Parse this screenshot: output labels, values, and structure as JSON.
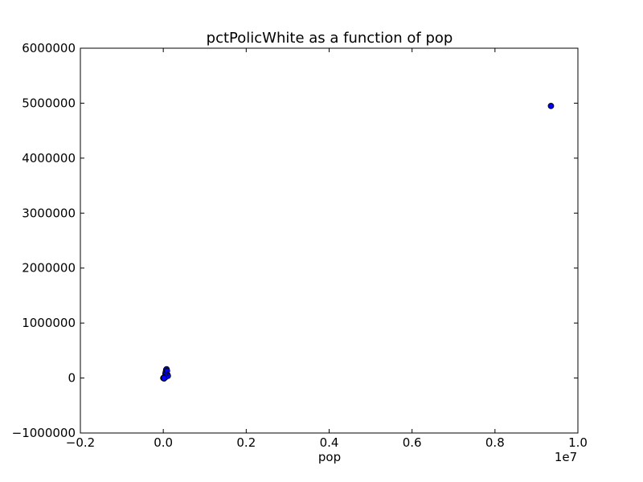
{
  "chart_data": {
    "type": "scatter",
    "title": "pctPolicWhite as a function of pop",
    "xlabel": "pop",
    "ylabel": "",
    "x_offset_label": "1e7",
    "xlim": [
      -0.2,
      1.0
    ],
    "ylim": [
      -1000000,
      6000000
    ],
    "x_ticks": [
      -0.2,
      0.0,
      0.2,
      0.4,
      0.6,
      0.8,
      1.0
    ],
    "x_tick_labels": [
      "−0.2",
      "0.0",
      "0.2",
      "0.4",
      "0.6",
      "0.8",
      "1.0"
    ],
    "y_ticks": [
      -1000000,
      0,
      1000000,
      2000000,
      3000000,
      4000000,
      5000000,
      6000000
    ],
    "y_tick_labels": [
      "−1000000",
      "0",
      "1000000",
      "2000000",
      "3000000",
      "4000000",
      "5000000",
      "6000000"
    ],
    "grid": false,
    "marker_color": "#0000ff",
    "marker_edge_color": "#000000",
    "series": [
      {
        "points": [
          {
            "x": 0.0,
            "y": 0
          },
          {
            "x": 0.001,
            "y": 5000
          },
          {
            "x": 0.002,
            "y": -8000
          },
          {
            "x": 0.003,
            "y": 12000
          },
          {
            "x": 0.004,
            "y": 30000
          },
          {
            "x": 0.005,
            "y": 80000
          },
          {
            "x": 0.006,
            "y": 110000
          },
          {
            "x": 0.007,
            "y": 150000
          },
          {
            "x": 0.008,
            "y": 160000
          },
          {
            "x": 0.009,
            "y": 130000
          },
          {
            "x": 0.01,
            "y": 60000
          },
          {
            "x": 0.011,
            "y": 40000
          },
          {
            "x": 0.006,
            "y": 20000
          },
          {
            "x": 0.002,
            "y": 2000
          },
          {
            "x": 0.935,
            "y": 4950000
          }
        ]
      }
    ]
  }
}
